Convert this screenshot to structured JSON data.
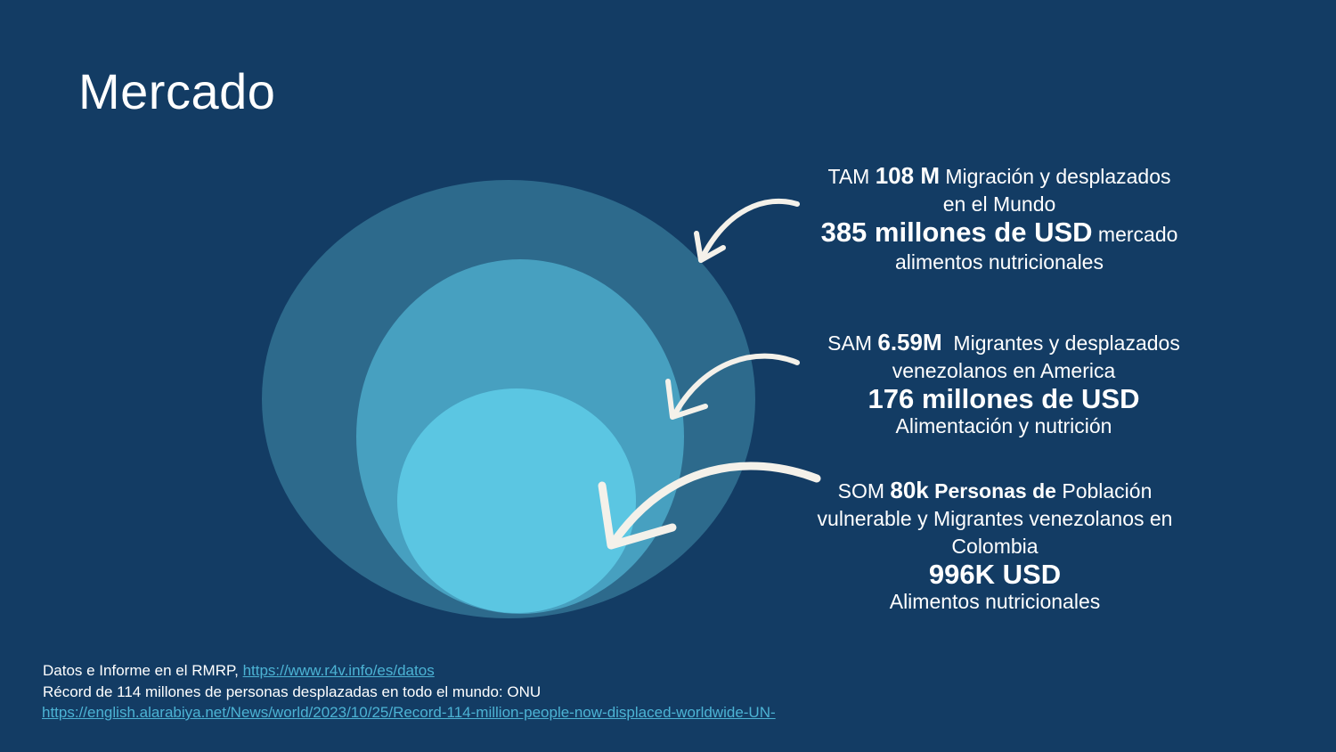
{
  "title": "Mercado",
  "colors": {
    "background": "#133c64",
    "tam_circle": "#2d6a8c",
    "sam_circle": "#47a0c0",
    "som_circle": "#5bc6e2",
    "link": "#4cb3d4",
    "arrow": "#f4f1ea"
  },
  "tam": {
    "prefix": "TAM",
    "value": "108 M",
    "desc_1": "Migración y desplazados",
    "desc_2": "en el Mundo",
    "amount": "385 millones de USD",
    "amount_suffix": "mercado",
    "desc_3": "alimentos nutricionales"
  },
  "sam": {
    "prefix": "SAM",
    "value": "6.59M",
    "desc_1": "Migrantes y desplazados",
    "desc_2": "venezolanos en America",
    "amount": "176 millones de USD",
    "desc_3": "Alimentación y nutrición"
  },
  "som": {
    "prefix": "SOM",
    "value": "80k",
    "bold_text": "Personas de",
    "desc_1": "Población",
    "desc_2": "vulnerable y Migrantes venezolanos en",
    "desc_3": "Colombia",
    "amount": "996K USD",
    "desc_4": "Alimentos nutricionales"
  },
  "footer": {
    "line1_text": "Datos e Informe en el RMRP,",
    "line1_link": "https://www.r4v.info/es/datos",
    "line2_text": "Récord de 114 millones de personas desplazadas en todo el mundo: ONU",
    "line3_link": "https://english.alarabiya.net/News/world/2023/10/25/Record-114-million-people-now-displaced-worldwide-UN-"
  }
}
